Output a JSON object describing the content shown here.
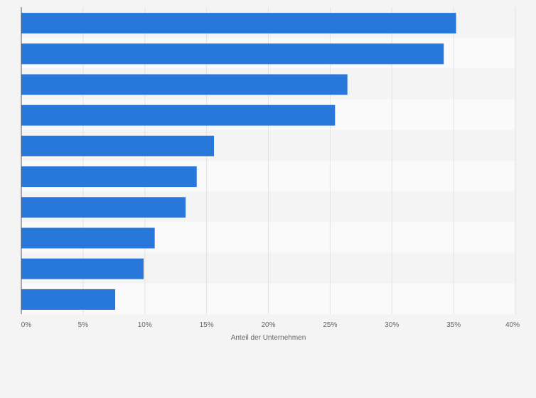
{
  "chart_data": {
    "type": "bar",
    "orientation": "horizontal",
    "categories": [
      "",
      "",
      "",
      "",
      "",
      "",
      "",
      "",
      "",
      ""
    ],
    "values": [
      35.2,
      34.2,
      26.4,
      25.4,
      15.6,
      14.2,
      13.3,
      10.8,
      9.9,
      7.6
    ],
    "xlabel": "Anteil der Unternehmen",
    "xlim": [
      0,
      40
    ],
    "xticks": [
      0,
      5,
      10,
      15,
      20,
      25,
      30,
      35,
      40
    ],
    "xtick_labels": [
      "0%",
      "5%",
      "10%",
      "15%",
      "20%",
      "25%",
      "30%",
      "35%",
      "40%"
    ],
    "grid": "vertical",
    "legend": "none",
    "bar_color": "#2878dc",
    "band_colors": [
      "#f4f4f4",
      "#fafafa"
    ],
    "gridline_color": "#e2e2e2",
    "axis_color": "#555555"
  }
}
